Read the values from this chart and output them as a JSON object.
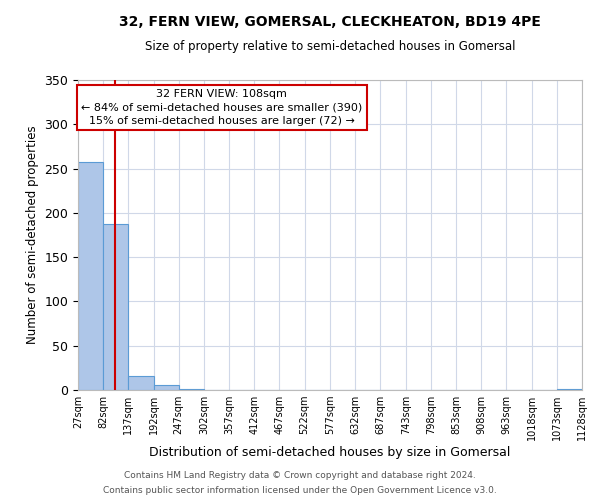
{
  "title": "32, FERN VIEW, GOMERSAL, CLECKHEATON, BD19 4PE",
  "subtitle": "Size of property relative to semi-detached houses in Gomersal",
  "xlabel": "Distribution of semi-detached houses by size in Gomersal",
  "ylabel": "Number of semi-detached properties",
  "bin_edges": [
    27,
    82,
    137,
    192,
    247,
    302,
    357,
    412,
    467,
    522,
    577,
    632,
    687,
    743,
    798,
    853,
    908,
    963,
    1018,
    1073,
    1128
  ],
  "bin_counts": [
    257,
    187,
    16,
    6,
    1,
    0,
    0,
    0,
    0,
    0,
    0,
    0,
    0,
    0,
    0,
    0,
    0,
    0,
    0,
    1
  ],
  "bar_color": "#aec6e8",
  "bar_edge_color": "#5b9bd5",
  "property_size": 108,
  "vline_color": "#cc0000",
  "annotation_title": "32 FERN VIEW: 108sqm",
  "annotation_line1": "← 84% of semi-detached houses are smaller (390)",
  "annotation_line2": "15% of semi-detached houses are larger (72) →",
  "annotation_box_color": "#ffffff",
  "annotation_box_edge_color": "#cc0000",
  "ylim": [
    0,
    350
  ],
  "yticks": [
    0,
    50,
    100,
    150,
    200,
    250,
    300,
    350
  ],
  "tick_labels": [
    "27sqm",
    "82sqm",
    "137sqm",
    "192sqm",
    "247sqm",
    "302sqm",
    "357sqm",
    "412sqm",
    "467sqm",
    "522sqm",
    "577sqm",
    "632sqm",
    "687sqm",
    "743sqm",
    "798sqm",
    "853sqm",
    "908sqm",
    "963sqm",
    "1018sqm",
    "1073sqm",
    "1128sqm"
  ],
  "footer_line1": "Contains HM Land Registry data © Crown copyright and database right 2024.",
  "footer_line2": "Contains public sector information licensed under the Open Government Licence v3.0.",
  "background_color": "#ffffff",
  "grid_color": "#d0d8e8"
}
